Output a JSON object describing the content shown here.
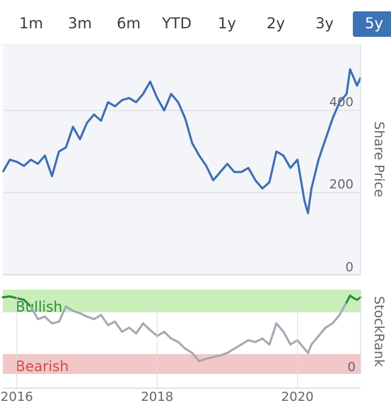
{
  "range_tabs": {
    "active": "5y",
    "items": [
      "1m",
      "3m",
      "6m",
      "YTD",
      "1y",
      "2y",
      "3y",
      "5y"
    ]
  },
  "chart_data": [
    {
      "type": "line",
      "title": "",
      "ylabel": "Share Price",
      "ylim": [
        0,
        560
      ],
      "yticks": [
        0,
        200,
        400
      ],
      "xticks": [
        "2016",
        "2018",
        "2020"
      ],
      "grid": true,
      "colors": {
        "line": "#3c6eb4",
        "area": "#f3f5f9",
        "grid": "#d6d6d6"
      },
      "series": [
        {
          "name": "",
          "x": [
            2015.8,
            2015.9,
            2016.0,
            2016.1,
            2016.2,
            2016.3,
            2016.4,
            2016.5,
            2016.6,
            2016.7,
            2016.8,
            2016.9,
            2017.0,
            2017.1,
            2017.2,
            2017.3,
            2017.4,
            2017.5,
            2017.6,
            2017.7,
            2017.8,
            2017.9,
            2018.0,
            2018.1,
            2018.2,
            2018.3,
            2018.4,
            2018.5,
            2018.6,
            2018.7,
            2018.8,
            2018.9,
            2019.0,
            2019.1,
            2019.2,
            2019.3,
            2019.4,
            2019.5,
            2019.6,
            2019.7,
            2019.8,
            2019.9,
            2020.0,
            2020.1,
            2020.15,
            2020.2,
            2020.3,
            2020.4,
            2020.5,
            2020.6,
            2020.7,
            2020.75,
            2020.8,
            2020.85,
            2020.9
          ],
          "values": [
            250,
            280,
            275,
            265,
            280,
            270,
            290,
            240,
            300,
            310,
            360,
            330,
            370,
            390,
            375,
            420,
            410,
            425,
            430,
            420,
            440,
            470,
            430,
            400,
            440,
            420,
            380,
            320,
            290,
            265,
            230,
            250,
            270,
            250,
            250,
            260,
            230,
            210,
            225,
            300,
            290,
            260,
            280,
            180,
            150,
            210,
            280,
            330,
            380,
            420,
            440,
            500,
            480,
            460,
            480
          ]
        }
      ]
    },
    {
      "type": "line",
      "ylabel": "StockRank",
      "zones": [
        "Bullish",
        "Bearish"
      ],
      "yticks": [
        0
      ],
      "ylim": [
        0,
        100
      ],
      "colors": {
        "line": "#a3a9b3",
        "bullish_line": "#2e8b3a",
        "bullish_zone": "#c9efb9",
        "bearish_zone": "#f1c7c7",
        "bullish_text": "#2e8b3a",
        "bearish_text": "#d24b4b"
      },
      "series": [
        {
          "name": "",
          "x": [
            2015.8,
            2015.9,
            2016.0,
            2016.1,
            2016.2,
            2016.3,
            2016.4,
            2016.5,
            2016.6,
            2016.7,
            2016.8,
            2016.9,
            2017.0,
            2017.1,
            2017.2,
            2017.3,
            2017.4,
            2017.5,
            2017.6,
            2017.7,
            2017.8,
            2017.9,
            2018.0,
            2018.1,
            2018.2,
            2018.3,
            2018.4,
            2018.5,
            2018.6,
            2018.7,
            2018.8,
            2018.9,
            2019.0,
            2019.1,
            2019.2,
            2019.3,
            2019.4,
            2019.5,
            2019.6,
            2019.7,
            2019.8,
            2019.9,
            2020.0,
            2020.1,
            2020.15,
            2020.2,
            2020.3,
            2020.4,
            2020.5,
            2020.6,
            2020.7,
            2020.75,
            2020.8,
            2020.85,
            2020.9
          ],
          "values": [
            91,
            92,
            90,
            88,
            80,
            65,
            68,
            60,
            62,
            80,
            75,
            72,
            68,
            65,
            70,
            58,
            62,
            50,
            55,
            48,
            60,
            52,
            45,
            50,
            42,
            38,
            30,
            25,
            15,
            18,
            20,
            22,
            25,
            30,
            35,
            40,
            38,
            42,
            35,
            60,
            50,
            35,
            40,
            30,
            25,
            35,
            45,
            55,
            60,
            70,
            85,
            93,
            90,
            88,
            91
          ]
        }
      ]
    }
  ]
}
